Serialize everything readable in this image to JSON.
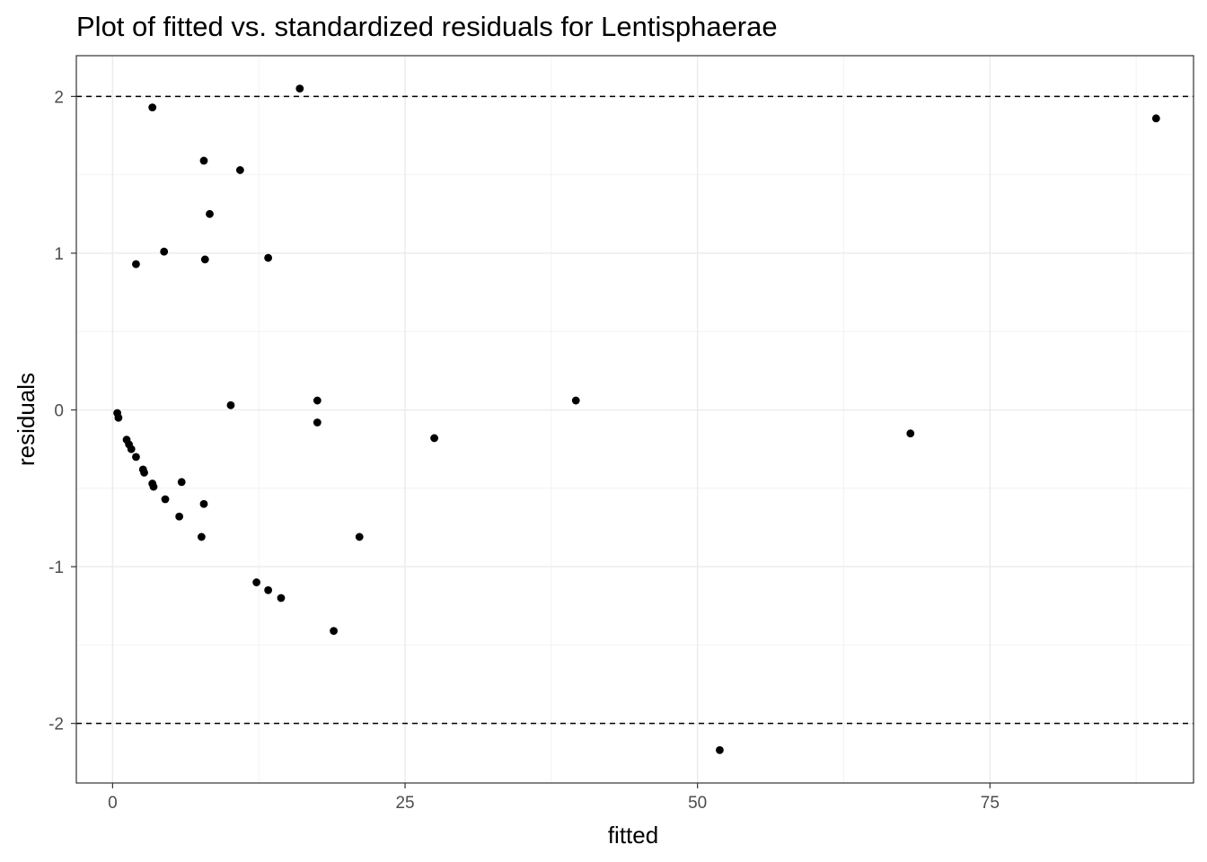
{
  "chart_data": {
    "type": "scatter",
    "title": "Plot of fitted vs. standardized residuals for Lentisphaerae",
    "xlabel": "fitted",
    "ylabel": "residuals",
    "xlim": [
      -3.1,
      92.4
    ],
    "ylim": [
      -2.38,
      2.26
    ],
    "x_ticks": [
      0,
      25,
      50,
      75
    ],
    "x_tick_labels": [
      "0",
      "25",
      "50",
      "75"
    ],
    "y_ticks": [
      -2,
      -1,
      0,
      1,
      2
    ],
    "y_tick_labels": [
      "-2",
      "-1",
      "0",
      "1",
      "2"
    ],
    "reference_lines": [
      2,
      -2
    ],
    "grid": true,
    "theme": "bw",
    "point_color": "#000000",
    "x": [
      16.0,
      89.2,
      3.4,
      7.8,
      10.9,
      8.3,
      4.4,
      7.9,
      13.3,
      2.0,
      17.5,
      39.6,
      10.1,
      17.5,
      68.2,
      27.5,
      0.4,
      0.5,
      1.2,
      1.4,
      1.6,
      2.0,
      2.6,
      2.7,
      3.4,
      3.5,
      5.9,
      4.5,
      7.8,
      5.7,
      7.6,
      21.1,
      12.3,
      13.3,
      14.4,
      18.9,
      51.9
    ],
    "y": [
      2.05,
      1.86,
      1.93,
      1.59,
      1.53,
      1.25,
      1.01,
      0.96,
      0.97,
      0.93,
      0.06,
      0.06,
      0.03,
      -0.08,
      -0.15,
      -0.18,
      -0.02,
      -0.05,
      -0.19,
      -0.22,
      -0.25,
      -0.3,
      -0.38,
      -0.4,
      -0.47,
      -0.49,
      -0.46,
      -0.57,
      -0.6,
      -0.68,
      -0.81,
      -0.81,
      -1.1,
      -1.15,
      -1.2,
      -1.41,
      -2.17
    ]
  }
}
